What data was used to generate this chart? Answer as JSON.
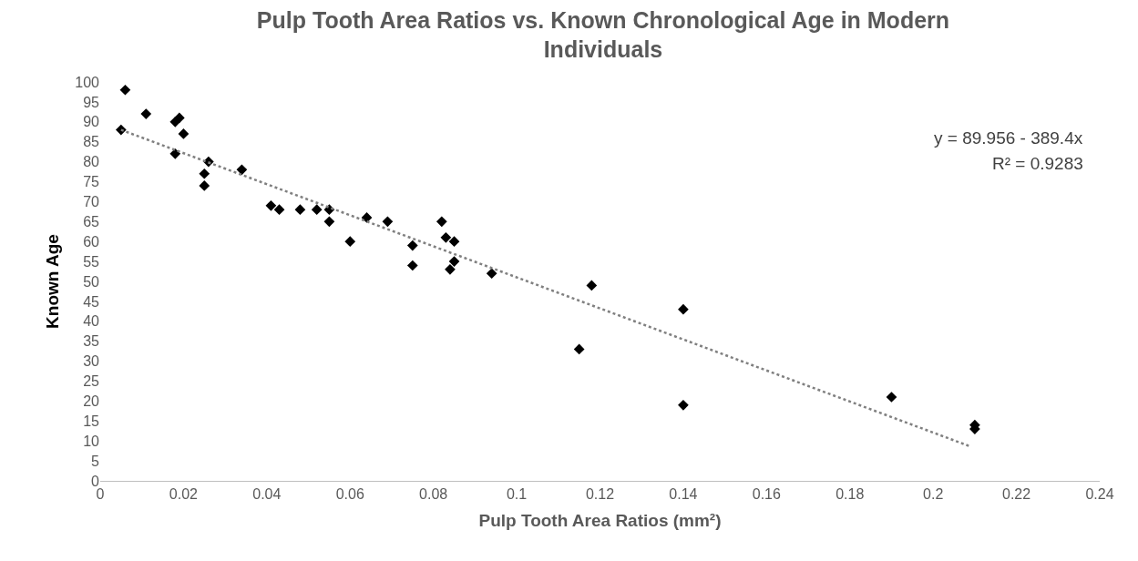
{
  "chart_data": {
    "type": "scatter",
    "title": "Pulp Tooth Area Ratios vs. Known Chronological Age in Modern Individuals",
    "xlabel": "Pulp Tooth Area Ratios (mm²)",
    "ylabel": "Known Age",
    "annotations": [
      "y = 89.956 - 389.4x",
      "R² = 0.9283"
    ],
    "xlim": [
      0,
      0.24
    ],
    "xticks": [
      0,
      0.02,
      0.04,
      0.06,
      0.08,
      0.1,
      0.12,
      0.14,
      0.16,
      0.18,
      0.2,
      0.22,
      0.24
    ],
    "ylim": [
      0,
      100
    ],
    "yticks": [
      0,
      5,
      10,
      15,
      20,
      25,
      30,
      35,
      40,
      45,
      50,
      55,
      60,
      65,
      70,
      75,
      80,
      85,
      90,
      95,
      100
    ],
    "grid": false,
    "marker": "diamond",
    "series": [
      {
        "color": "#000000",
        "x": [
          0.005,
          0.006,
          0.011,
          0.018,
          0.019,
          0.018,
          0.02,
          0.025,
          0.025,
          0.026,
          0.034,
          0.041,
          0.043,
          0.048,
          0.052,
          0.055,
          0.055,
          0.06,
          0.064,
          0.069,
          0.075,
          0.075,
          0.082,
          0.083,
          0.084,
          0.085,
          0.085,
          0.094,
          0.115,
          0.118,
          0.14,
          0.14,
          0.19,
          0.21,
          0.21
        ],
        "values": [
          88,
          98,
          92,
          90,
          91,
          82,
          87,
          77,
          74,
          80,
          78,
          69,
          68,
          68,
          68,
          68,
          65,
          60,
          66,
          65,
          59,
          54,
          65,
          61,
          53,
          55,
          60,
          52,
          33,
          49,
          43,
          19,
          21,
          14,
          13
        ]
      },
      {
        "type": "line",
        "color": "#808080",
        "line_style": "dotted",
        "marker": "none",
        "x": [
          0.005,
          0.209
        ],
        "values": [
          88.0,
          8.6
        ]
      }
    ]
  }
}
